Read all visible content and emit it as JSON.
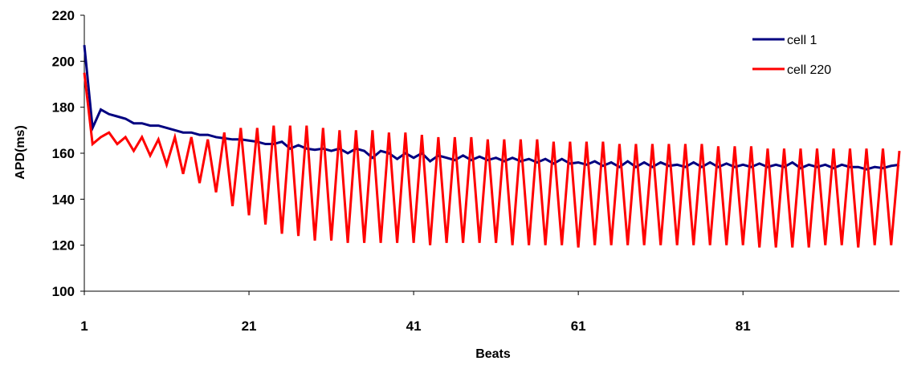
{
  "chart_data": {
    "type": "line",
    "title": "",
    "xlabel": "Beats",
    "ylabel": "APD(ms)",
    "xlim": [
      1,
      100
    ],
    "ylim": [
      100,
      220
    ],
    "x_ticks": [
      "1",
      "21",
      "41",
      "61",
      "81"
    ],
    "y_ticks": [
      "100",
      "120",
      "140",
      "160",
      "180",
      "200",
      "220"
    ],
    "grid": false,
    "legend": "top-right",
    "series": [
      {
        "name": "cell 1",
        "color": "#000080",
        "x": [
          1,
          2,
          3,
          4,
          5,
          6,
          7,
          8,
          9,
          10,
          11,
          12,
          13,
          14,
          15,
          16,
          17,
          18,
          19,
          20,
          21,
          22,
          23,
          24,
          25,
          26,
          27,
          28,
          29,
          30,
          31,
          32,
          33,
          34,
          35,
          36,
          37,
          38,
          39,
          40,
          41,
          42,
          43,
          44,
          45,
          46,
          47,
          48,
          49,
          50,
          51,
          52,
          53,
          54,
          55,
          56,
          57,
          58,
          59,
          60,
          61,
          62,
          63,
          64,
          65,
          66,
          67,
          68,
          69,
          70,
          71,
          72,
          73,
          74,
          75,
          76,
          77,
          78,
          79,
          80,
          81,
          82,
          83,
          84,
          85,
          86,
          87,
          88,
          89,
          90,
          91,
          92,
          93,
          94,
          95,
          96,
          97,
          98,
          99,
          100
        ],
        "values": [
          207,
          171,
          179,
          177,
          176,
          175,
          173,
          173,
          172,
          172,
          171,
          170,
          169,
          169,
          168,
          168,
          167,
          166.5,
          166,
          166,
          165.5,
          165,
          164,
          164,
          165,
          162,
          163.5,
          162,
          161.5,
          162,
          161,
          162,
          160,
          162,
          161,
          158,
          161,
          160,
          157.5,
          160,
          158,
          160,
          156.5,
          159,
          158,
          157,
          159,
          157,
          158.5,
          157,
          158,
          156.5,
          158,
          156.5,
          157.5,
          156,
          157.5,
          155.5,
          157.5,
          155.5,
          156,
          155,
          156.5,
          154.5,
          156,
          154,
          156.5,
          154,
          156,
          154,
          156,
          154.5,
          155,
          154,
          156,
          154,
          156,
          154,
          155.5,
          154,
          155,
          154,
          155.5,
          154,
          155,
          154,
          156,
          153.5,
          155,
          154,
          155,
          153.5,
          155,
          154,
          154,
          153,
          154,
          153.5,
          154.5,
          155
        ]
      },
      {
        "name": "cell 220",
        "color": "#ff0000",
        "x": [
          1,
          2,
          3,
          4,
          5,
          6,
          7,
          8,
          9,
          10,
          11,
          12,
          13,
          14,
          15,
          16,
          17,
          18,
          19,
          20,
          21,
          22,
          23,
          24,
          25,
          26,
          27,
          28,
          29,
          30,
          31,
          32,
          33,
          34,
          35,
          36,
          37,
          38,
          39,
          40,
          41,
          42,
          43,
          44,
          45,
          46,
          47,
          48,
          49,
          50,
          51,
          52,
          53,
          54,
          55,
          56,
          57,
          58,
          59,
          60,
          61,
          62,
          63,
          64,
          65,
          66,
          67,
          68,
          69,
          70,
          71,
          72,
          73,
          74,
          75,
          76,
          77,
          78,
          79,
          80,
          81,
          82,
          83,
          84,
          85,
          86,
          87,
          88,
          89,
          90,
          91,
          92,
          93,
          94,
          95,
          96,
          97,
          98,
          99,
          100
        ],
        "values": [
          195,
          164,
          167,
          169,
          164,
          167,
          161,
          167,
          159,
          166,
          155,
          167,
          151,
          167,
          147,
          166,
          143,
          169,
          137,
          171,
          133,
          171,
          129,
          172,
          125,
          172,
          124,
          172,
          122,
          171,
          122,
          170,
          121,
          170,
          121,
          170,
          121,
          169,
          121,
          169,
          121,
          168,
          120,
          167,
          121,
          167,
          121,
          167,
          121,
          166,
          121,
          166,
          120,
          166,
          120,
          166,
          120,
          165,
          120,
          165,
          119,
          165,
          120,
          165,
          120,
          164,
          120,
          164,
          120,
          164,
          120,
          164,
          120,
          164,
          120,
          164,
          120,
          163,
          120,
          163,
          120,
          163,
          119,
          162,
          119,
          162,
          119,
          162,
          119,
          162,
          120,
          162,
          120,
          162,
          119,
          162,
          120,
          162,
          120,
          161
        ]
      }
    ]
  }
}
